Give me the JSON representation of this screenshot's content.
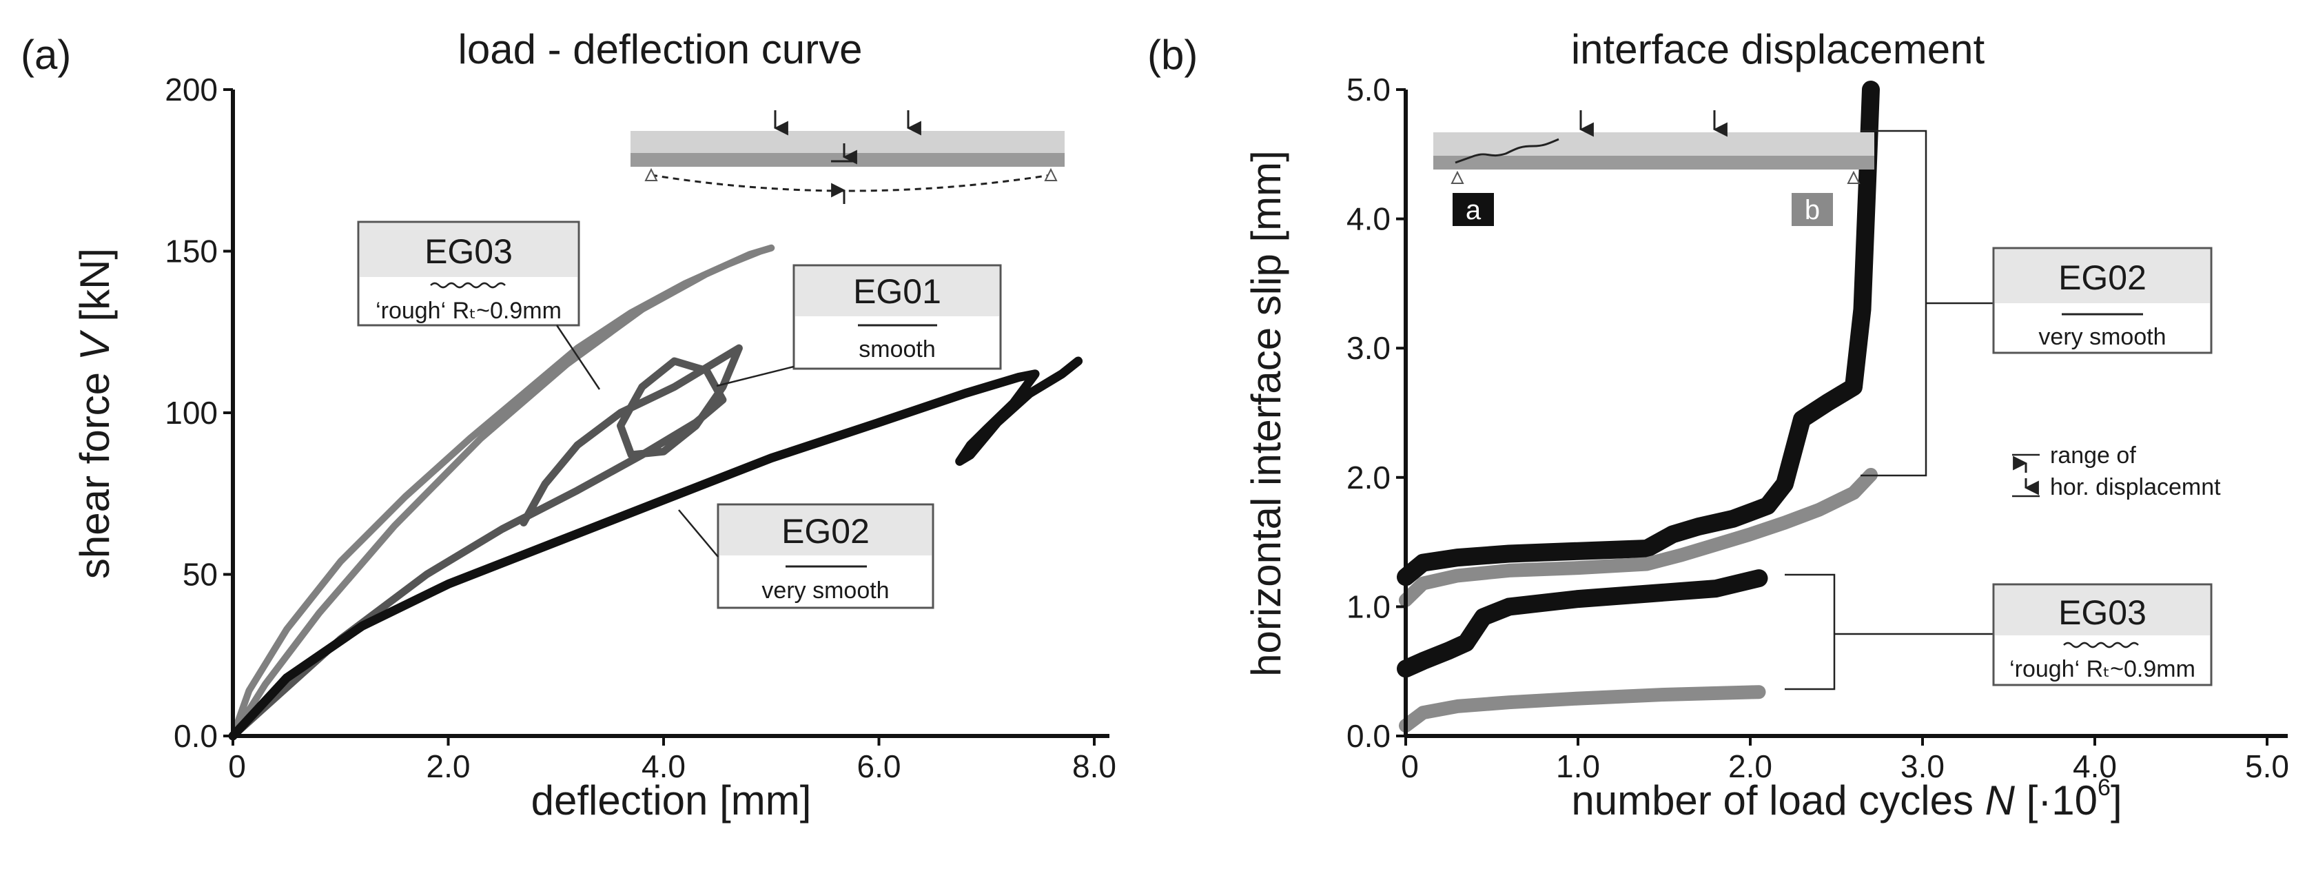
{
  "chart_data": [
    {
      "type": "line",
      "panel": "(a)",
      "title": "load - deflection curve",
      "xlabel": "deflection [mm]",
      "ylabel": "shear force V [kN]",
      "ylabel_main": "shear force ",
      "ylabel_var": "V",
      "ylabel_unit": " [kN]",
      "xlim": [
        0,
        8
      ],
      "ylim": [
        0,
        200
      ],
      "x_ticks": [
        0,
        2,
        4,
        6,
        8
      ],
      "x_tick_labels": [
        "0",
        "2.0",
        "4.0",
        "6.0",
        "8.0"
      ],
      "y_ticks": [
        0,
        50,
        100,
        150,
        200
      ],
      "y_tick_labels": [
        "0.0",
        "50",
        "100",
        "150",
        "200"
      ],
      "grid": false,
      "series": [
        {
          "name": "EG03",
          "color": "#808080",
          "x": [
            0,
            0.3,
            0.8,
            1.5,
            2.3,
            3.1,
            3.8,
            4.4,
            4.8,
            5.0,
            4.9,
            4.6,
            4.2,
            3.7,
            3.2,
            2.7,
            2.2,
            1.6,
            1.0,
            0.5,
            0.15,
            0
          ],
          "y": [
            0,
            16,
            38,
            65,
            92,
            115,
            132,
            143,
            149,
            151,
            150,
            146,
            140,
            131,
            120,
            106,
            92,
            74,
            54,
            33,
            14,
            0
          ]
        },
        {
          "name": "EG01",
          "color": "#555555",
          "x": [
            0,
            0.4,
            1.0,
            1.8,
            2.5,
            3.2,
            3.8,
            4.3,
            4.55,
            4.4,
            4.1,
            3.8,
            3.6,
            3.7,
            4.0,
            4.3,
            4.55,
            4.7,
            4.5,
            4.1,
            3.6,
            3.2,
            2.9,
            2.7
          ],
          "y": [
            0,
            12,
            30,
            50,
            64,
            76,
            87,
            97,
            104,
            113,
            116,
            108,
            96,
            87,
            88,
            96,
            108,
            120,
            116,
            108,
            100,
            90,
            78,
            66
          ]
        },
        {
          "name": "EG02",
          "color": "#111111",
          "x": [
            0,
            0.5,
            1.2,
            2.0,
            3.0,
            4.0,
            5.0,
            6.0,
            6.8,
            7.3,
            7.45,
            7.25,
            7.0,
            6.85,
            6.75,
            6.85,
            7.1,
            7.4,
            7.7,
            7.85
          ],
          "y": [
            0,
            18,
            34,
            47,
            60,
            73,
            86,
            97,
            106,
            111,
            112,
            103,
            95,
            90,
            85,
            87,
            97,
            106,
            112,
            116
          ]
        }
      ],
      "annotations": [
        {
          "title": "EG03",
          "subtitle": "‘rough‘ Rₜ~0.9mm",
          "rough": true
        },
        {
          "title": "EG01",
          "subtitle": "smooth",
          "rough": false
        },
        {
          "title": "EG02",
          "subtitle": "very smooth",
          "rough": false
        }
      ]
    },
    {
      "type": "line",
      "panel": "(b)",
      "title": "interface displacement",
      "xlabel": "number of load cycles N [·10⁶]",
      "xlabel_main": "number of load cycles ",
      "xlabel_var": "N",
      "xlabel_unit": " [·10",
      "xlabel_exp": "6",
      "xlabel_close": "]",
      "ylabel": "horizontal interface slip [mm]",
      "xlim": [
        0,
        5
      ],
      "ylim": [
        0,
        5
      ],
      "x_ticks": [
        0,
        1,
        2,
        3,
        4,
        5
      ],
      "x_tick_labels": [
        "0",
        "1.0",
        "2.0",
        "3.0",
        "4.0",
        "5.0"
      ],
      "y_ticks": [
        0,
        1,
        2,
        3,
        4,
        5
      ],
      "y_tick_labels": [
        "0.0",
        "1.0",
        "2.0",
        "3.0",
        "4.0",
        "5.0"
      ],
      "grid": false,
      "series": [
        {
          "name": "EG02 a",
          "color": "#111111",
          "x": [
            0,
            0.1,
            0.3,
            0.6,
            1.0,
            1.4,
            1.55,
            1.7,
            1.9,
            2.1,
            2.2,
            2.3,
            2.45,
            2.6,
            2.65,
            2.68,
            2.7
          ],
          "y": [
            1.23,
            1.34,
            1.38,
            1.41,
            1.43,
            1.45,
            1.56,
            1.62,
            1.68,
            1.78,
            1.95,
            2.45,
            2.58,
            2.7,
            3.3,
            4.3,
            5.0
          ]
        },
        {
          "name": "EG02 b",
          "color": "#8a8a8a",
          "x": [
            0,
            0.1,
            0.3,
            0.6,
            1.0,
            1.4,
            1.6,
            1.8,
            2.0,
            2.2,
            2.4,
            2.6,
            2.7
          ],
          "y": [
            1.05,
            1.18,
            1.24,
            1.28,
            1.3,
            1.33,
            1.4,
            1.48,
            1.56,
            1.65,
            1.75,
            1.88,
            2.02
          ]
        },
        {
          "name": "EG03 a",
          "color": "#111111",
          "x": [
            0,
            0.1,
            0.25,
            0.35,
            0.45,
            0.6,
            1.0,
            1.4,
            1.8,
            2.05
          ],
          "y": [
            0.52,
            0.58,
            0.66,
            0.72,
            0.92,
            1.0,
            1.06,
            1.1,
            1.14,
            1.22
          ]
        },
        {
          "name": "EG03 b",
          "color": "#8a8a8a",
          "x": [
            0,
            0.1,
            0.3,
            0.6,
            1.0,
            1.5,
            2.05
          ],
          "y": [
            0.08,
            0.18,
            0.23,
            0.26,
            0.29,
            0.32,
            0.34
          ]
        }
      ],
      "annotations": [
        {
          "title": "EG02",
          "subtitle": "very smooth",
          "rough": false
        },
        {
          "title": "EG03",
          "subtitle": "‘rough‘ Rₜ~0.9mm",
          "rough": true
        }
      ],
      "range_note": [
        "range of",
        "hor. displacemnt"
      ],
      "inset_labels": [
        "a",
        "b"
      ]
    }
  ]
}
